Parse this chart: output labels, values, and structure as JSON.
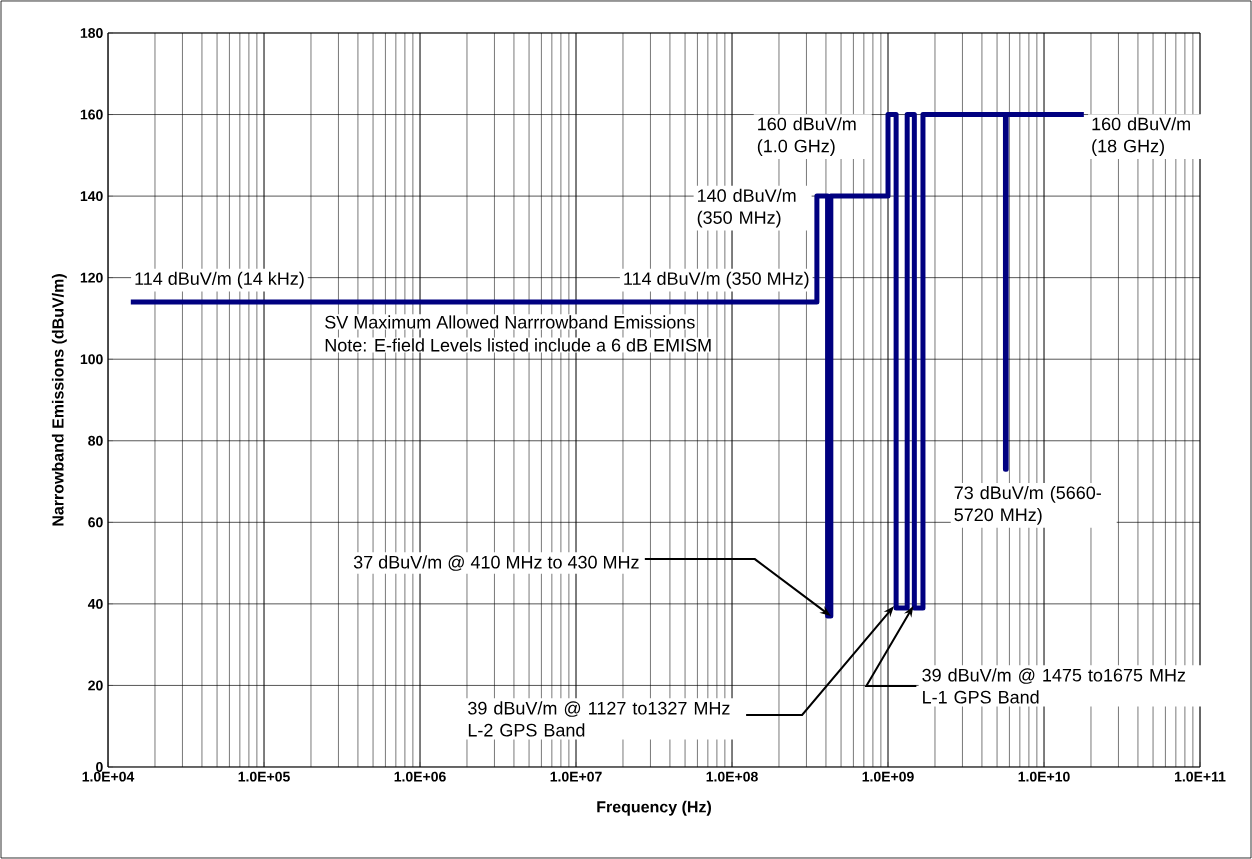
{
  "chart_data": {
    "type": "line",
    "xlabel": "Frequency (Hz)",
    "ylabel": "Narrowband Emissions (dBuV/m)",
    "log": "x",
    "grid": true,
    "xlim": [
      10000,
      100000000000
    ],
    "ylim": [
      0,
      180
    ],
    "xticks": [
      {
        "value": 10000,
        "label": "1.0E+04"
      },
      {
        "value": 100000,
        "label": "1.0E+05"
      },
      {
        "value": 1000000,
        "label": "1.0E+06"
      },
      {
        "value": 10000000,
        "label": "1.0E+07"
      },
      {
        "value": 100000000,
        "label": "1.0E+08"
      },
      {
        "value": 1000000000,
        "label": "1.0E+09"
      },
      {
        "value": 10000000000,
        "label": "1.0E+10"
      },
      {
        "value": 100000000000,
        "label": "1.0E+11"
      }
    ],
    "yticks": [
      0,
      20,
      40,
      60,
      80,
      100,
      120,
      140,
      160,
      180
    ],
    "series": [
      {
        "color": "#000080",
        "x": [
          14000,
          350000000,
          350000000,
          410000000,
          410000000,
          430000000,
          430000000,
          1000000000,
          1000000000,
          1127000000,
          1127000000,
          1327000000,
          1327000000,
          1475000000,
          1475000000,
          1675000000,
          1675000000,
          5660000000,
          5660000000,
          5720000000,
          5720000000,
          18000000000
        ],
        "values": [
          114,
          114,
          140,
          140,
          37,
          37,
          140,
          140,
          160,
          160,
          39,
          39,
          160,
          160,
          39,
          39,
          160,
          160,
          73,
          73,
          160,
          160
        ]
      }
    ],
    "annotations": [
      {
        "text": "114 dBuV/m (14 kHz)",
        "x": 14000,
        "y": 114
      },
      {
        "text": "114 dBuV/m (350 MHz)",
        "x": 350000000,
        "y": 114
      },
      {
        "text": "140 dBuV/m (350 MHz)",
        "x": 350000000,
        "y": 140
      },
      {
        "text": "160 dBuV/m (1.0 GHz)",
        "x": 1000000000,
        "y": 160
      },
      {
        "text": "160 dBuV/m (18 GHz)",
        "x": 18000000000,
        "y": 160
      },
      {
        "text": "73 dBuV/m (5660-5720 MHz)",
        "x": 5660000000,
        "y": 73
      },
      {
        "text": "37 dBuV/m @ 410 MHz to 430 MHz",
        "x": 430000000,
        "y": 37
      },
      {
        "text": "39 dBuV/m @ 1127 to1327 MHz L-2 GPS Band",
        "x": 1127000000,
        "y": 39
      },
      {
        "text": "39 dBuV/m @ 1475 to1675 MHz L-1 GPS Band",
        "x": 1475000000,
        "y": 39
      },
      "SV Maximum Allowed Narrrowband Emissions",
      "Note: E-field Levels listed include a 6 dB EMISM"
    ]
  }
}
